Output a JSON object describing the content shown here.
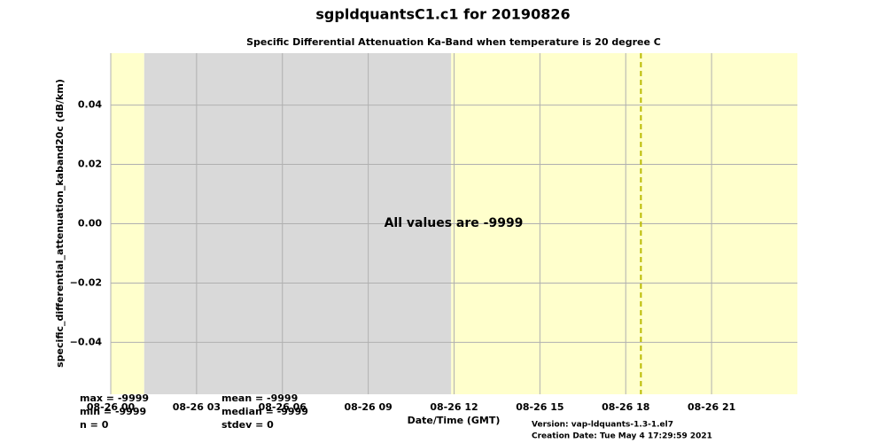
{
  "chart_data": {
    "type": "timeseries",
    "title": "sgpldquantsC1.c1 for 20190826",
    "subtitle": "Specific Differential Attenuation Ka-Band when temperature is 20 degree C",
    "ylabel": "specific_differential_attenuation_kaband20c (dB/km)",
    "xlabel": "Date/Time (GMT)",
    "annotation": "All values are -9999",
    "xlim": [
      0,
      24
    ],
    "xticks": [
      {
        "value": 0,
        "label": "08-26 00"
      },
      {
        "value": 3,
        "label": "08-26 03"
      },
      {
        "value": 6,
        "label": "08-26 06"
      },
      {
        "value": 9,
        "label": "08-26 09"
      },
      {
        "value": 12,
        "label": "08-26 12"
      },
      {
        "value": 15,
        "label": "08-26 15"
      },
      {
        "value": 18,
        "label": "08-26 18"
      },
      {
        "value": 21,
        "label": "08-26 21"
      }
    ],
    "ylim": [
      -0.0575,
      0.0575
    ],
    "yticks": [
      {
        "value": -0.04,
        "label": "−0.04"
      },
      {
        "value": -0.02,
        "label": "−0.02"
      },
      {
        "value": 0,
        "label": "0.00"
      },
      0.02,
      0.04
    ],
    "grid": true,
    "regions": [
      {
        "start": 0,
        "end": 1.17,
        "color": "#ffffcc"
      },
      {
        "start": 1.17,
        "end": 11.9,
        "color": "#d9d9d9"
      },
      {
        "start": 11.9,
        "end": 24,
        "color": "#ffffcc"
      }
    ],
    "vlines": [
      {
        "x": 18.53,
        "color": "#bbbb00"
      }
    ],
    "stats": [
      [
        "max = -9999",
        "min = -9999",
        "n = 0"
      ],
      [
        "mean = -9999",
        "median = -9999",
        "stdev = 0"
      ]
    ],
    "footer": [
      "Version: vap-ldquants-1.3-1.el7",
      "Creation Date: Tue May  4 17:29:59 2021"
    ]
  }
}
